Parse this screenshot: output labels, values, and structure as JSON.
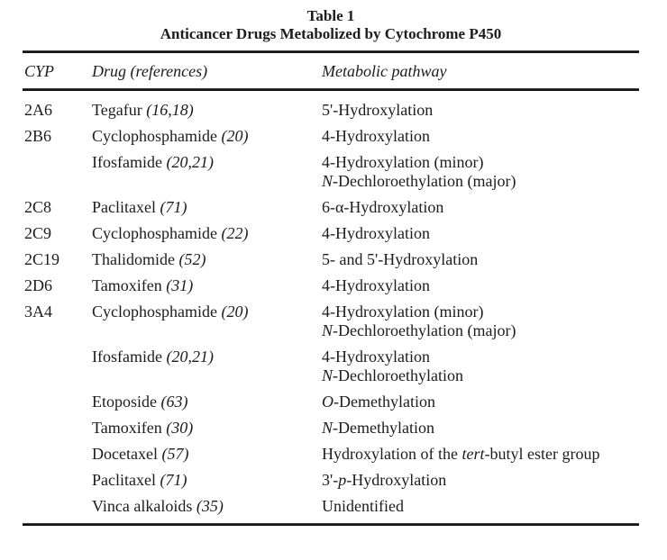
{
  "page": {
    "background": "#ffffff",
    "text_color": "#1c1c1c",
    "rule_color": "#151515"
  },
  "table": {
    "title": "Table 1",
    "subtitle": "Anticancer Drugs Metabolized by Cytochrome P450",
    "columns": {
      "cyp": "CYP",
      "drug": "Drug (references)",
      "pathway": "Metabolic pathway"
    },
    "rows": [
      {
        "cyp": "2A6",
        "drug": {
          "name": "Tegafur",
          "ref": "(16,18)"
        },
        "pathway": [
          [
            {
              "t": "5'-Hydroxylation"
            }
          ]
        ]
      },
      {
        "cyp": "2B6",
        "drug": {
          "name": "Cyclophosphamide",
          "ref": "(20)"
        },
        "pathway": [
          [
            {
              "t": "4-Hydroxylation"
            }
          ]
        ]
      },
      {
        "cyp": "",
        "drug": {
          "name": "Ifosfamide",
          "ref": "(20,21)"
        },
        "pathway": [
          [
            {
              "t": "4-Hydroxylation (minor)"
            }
          ],
          [
            {
              "t": "N",
              "i": true
            },
            {
              "t": "-Dechloroethylation (major)"
            }
          ]
        ]
      },
      {
        "cyp": "2C8",
        "drug": {
          "name": "Paclitaxel",
          "ref": "(71)"
        },
        "pathway": [
          [
            {
              "t": "6-α-Hydroxylation"
            }
          ]
        ]
      },
      {
        "cyp": "2C9",
        "drug": {
          "name": "Cyclophosphamide",
          "ref": "(22)"
        },
        "pathway": [
          [
            {
              "t": "4-Hydroxylation"
            }
          ]
        ]
      },
      {
        "cyp": "2C19",
        "drug": {
          "name": "Thalidomide",
          "ref": "(52)"
        },
        "pathway": [
          [
            {
              "t": "5- and 5'-Hydroxylation"
            }
          ]
        ]
      },
      {
        "cyp": "2D6",
        "drug": {
          "name": "Tamoxifen",
          "ref": "(31)"
        },
        "pathway": [
          [
            {
              "t": "4-Hydroxylation"
            }
          ]
        ]
      },
      {
        "cyp": "3A4",
        "drug": {
          "name": "Cyclophosphamide",
          "ref": "(20)"
        },
        "pathway": [
          [
            {
              "t": "4-Hydroxylation (minor)"
            }
          ],
          [
            {
              "t": "N",
              "i": true
            },
            {
              "t": "-Dechloroethylation (major)"
            }
          ]
        ]
      },
      {
        "cyp": "",
        "drug": {
          "name": "Ifosfamide",
          "ref": "(20,21)"
        },
        "pathway": [
          [
            {
              "t": "4-Hydroxylation"
            }
          ],
          [
            {
              "t": "N",
              "i": true
            },
            {
              "t": "-Dechloroethylation"
            }
          ]
        ]
      },
      {
        "cyp": "",
        "drug": {
          "name": "Etoposide",
          "ref": "(63)"
        },
        "pathway": [
          [
            {
              "t": "O",
              "i": true
            },
            {
              "t": "-Demethylation"
            }
          ]
        ]
      },
      {
        "cyp": "",
        "drug": {
          "name": "Tamoxifen",
          "ref": "(30)"
        },
        "pathway": [
          [
            {
              "t": "N",
              "i": true
            },
            {
              "t": "-Demethylation"
            }
          ]
        ]
      },
      {
        "cyp": "",
        "drug": {
          "name": "Docetaxel",
          "ref": "(57)"
        },
        "pathway": [
          [
            {
              "t": "Hydroxylation of the "
            },
            {
              "t": "tert",
              "i": true
            },
            {
              "t": "-butyl ester group"
            }
          ]
        ]
      },
      {
        "cyp": "",
        "drug": {
          "name": "Paclitaxel",
          "ref": "(71)"
        },
        "pathway": [
          [
            {
              "t": "3'-"
            },
            {
              "t": "p",
              "i": true
            },
            {
              "t": "-Hydroxylation"
            }
          ]
        ]
      },
      {
        "cyp": "",
        "drug": {
          "name": "Vinca alkaloids",
          "ref": "(35)"
        },
        "pathway": [
          [
            {
              "t": "Unidentified"
            }
          ]
        ]
      }
    ]
  }
}
